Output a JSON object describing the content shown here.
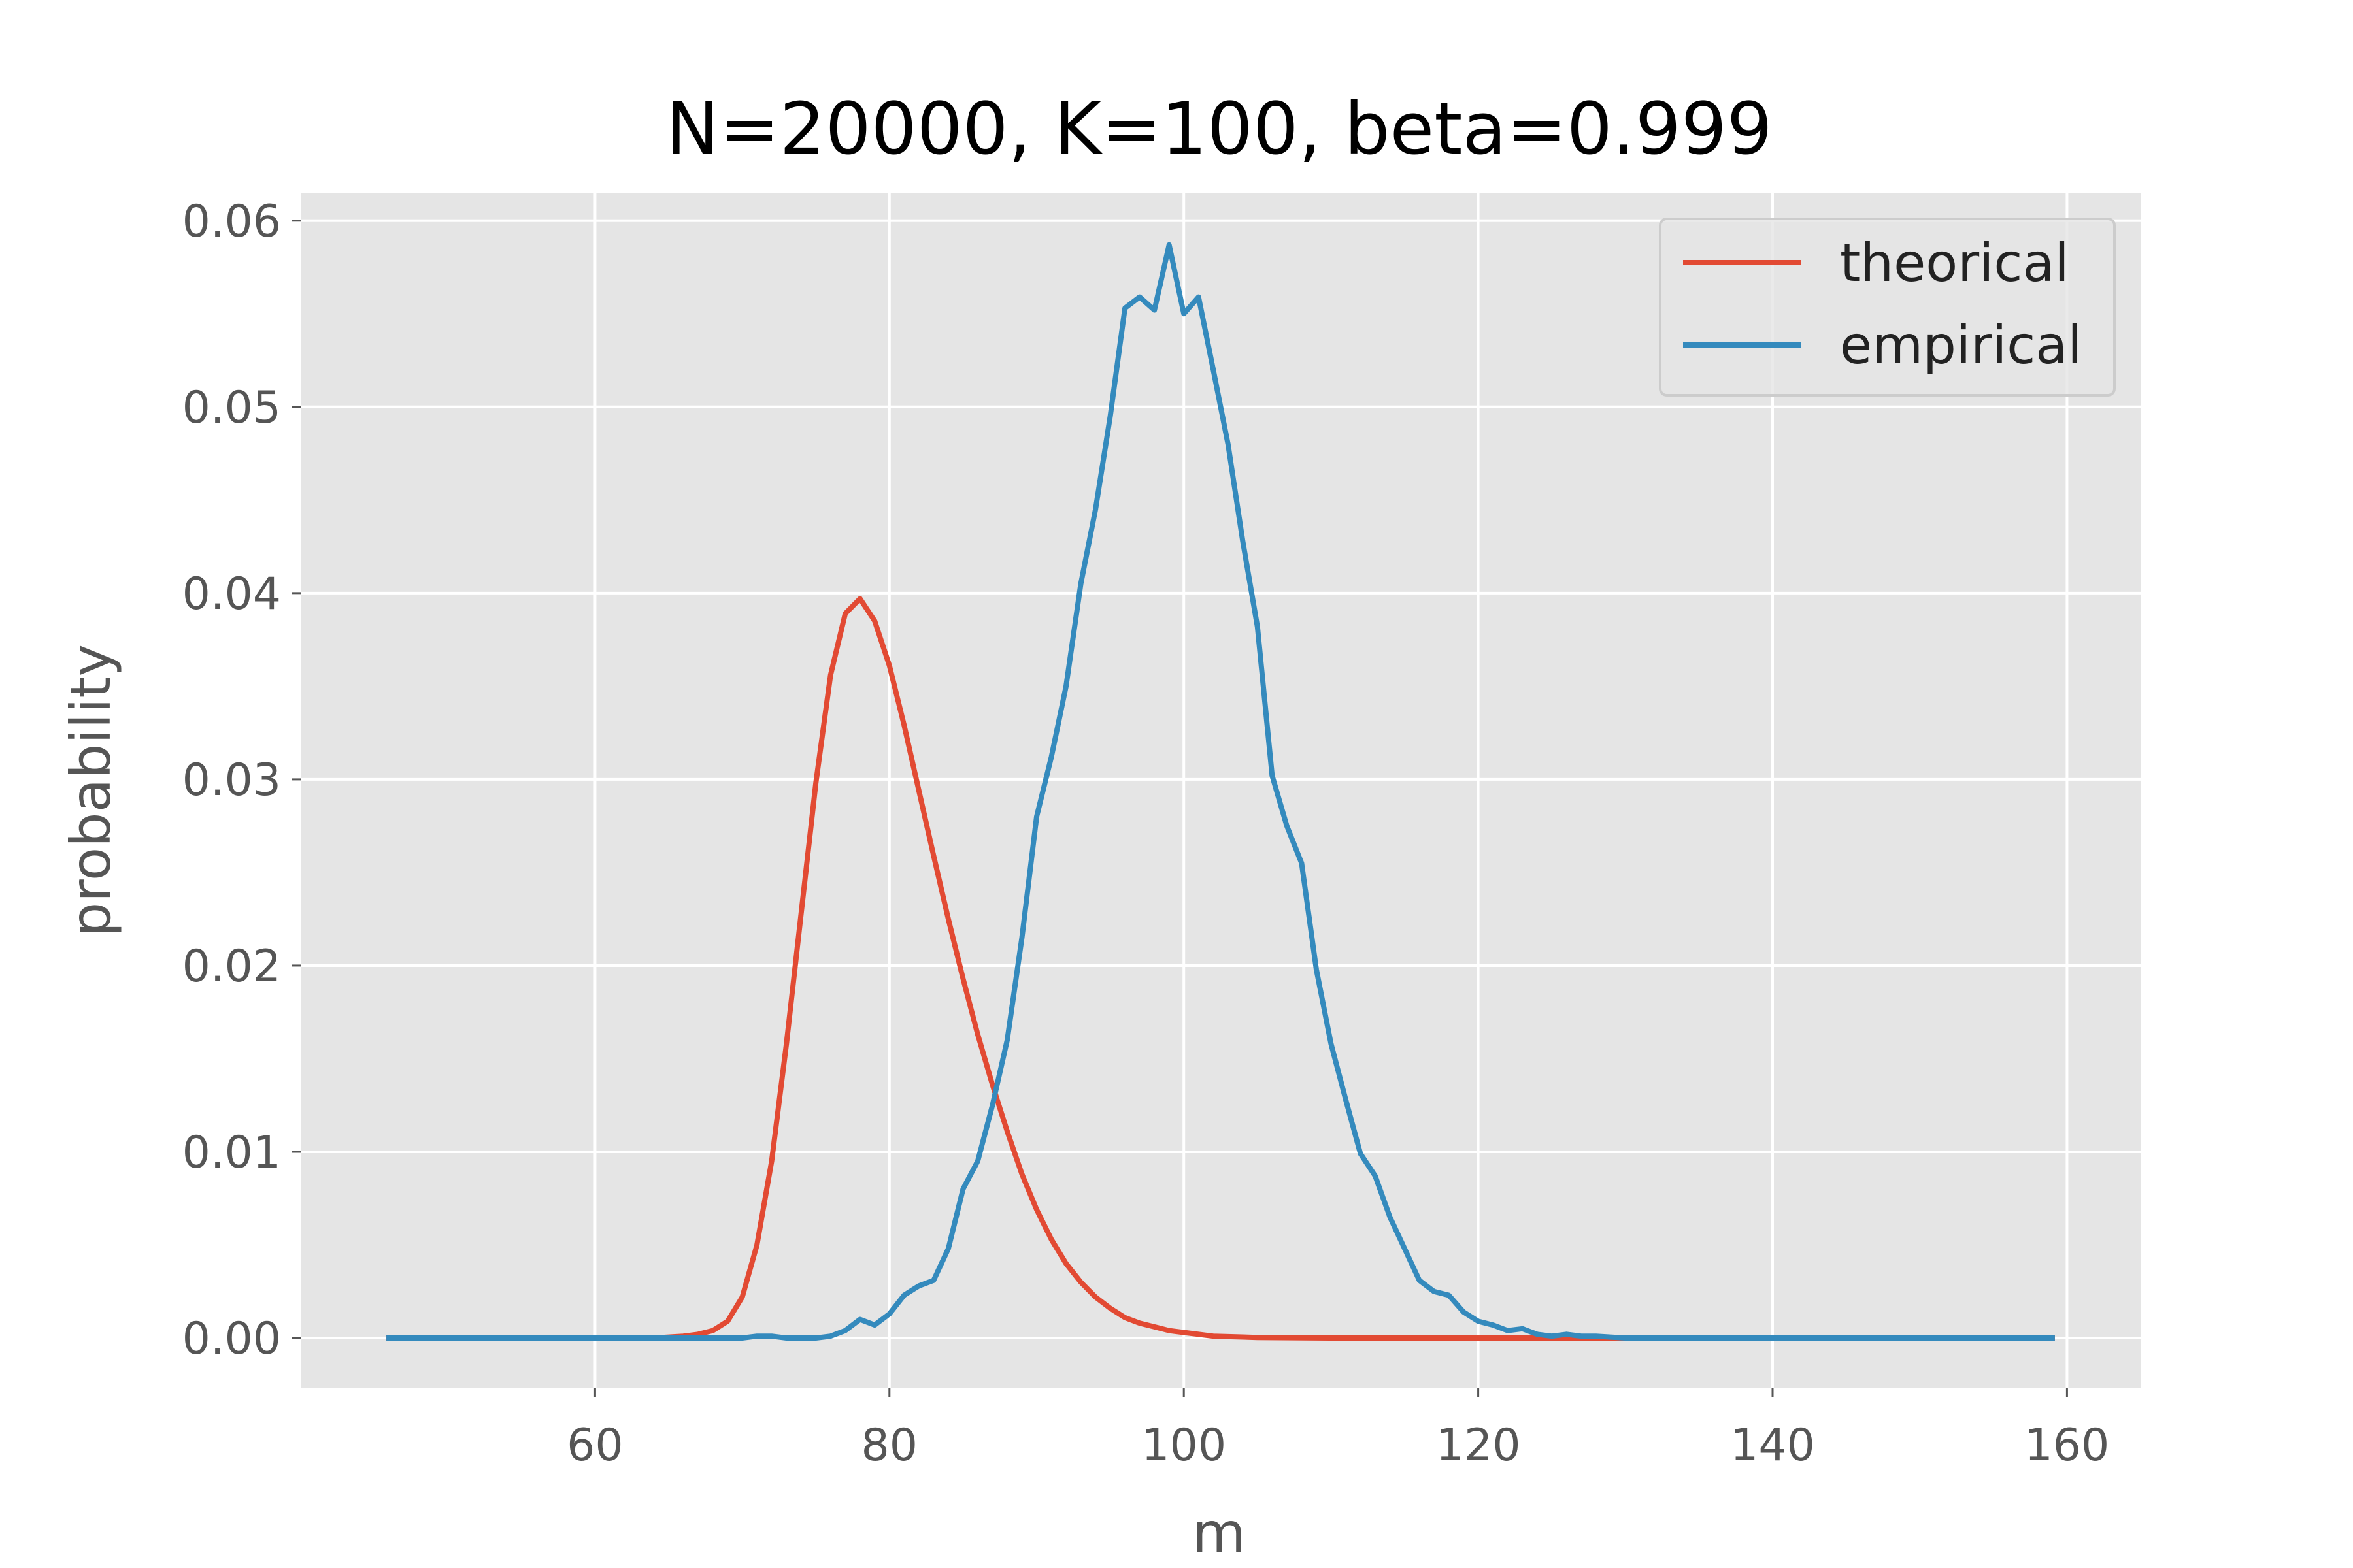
{
  "chart_data": {
    "type": "line",
    "title": "N=20000, K=100, beta=0.999",
    "xlabel": "m",
    "ylabel": "probability",
    "xlim": [
      40,
      165
    ],
    "ylim": [
      -0.0027,
      0.0615
    ],
    "xticks": [
      60,
      80,
      100,
      120,
      140,
      160
    ],
    "yticks": [
      0.0,
      0.01,
      0.02,
      0.03,
      0.04,
      0.05,
      0.06
    ],
    "ytick_labels": [
      "0.00",
      "0.01",
      "0.02",
      "0.03",
      "0.04",
      "0.05",
      "0.06"
    ],
    "grid": true,
    "legend_position": "upper right",
    "series": [
      {
        "name": "theorical",
        "color": "#e24a33",
        "points": [
          [
            46,
            0.0
          ],
          [
            60,
            0.0
          ],
          [
            64,
            0.0
          ],
          [
            66,
            0.0001
          ],
          [
            67,
            0.0002
          ],
          [
            68,
            0.0004
          ],
          [
            69,
            0.0009
          ],
          [
            70,
            0.0022
          ],
          [
            71,
            0.005
          ],
          [
            72,
            0.0095
          ],
          [
            73,
            0.0158
          ],
          [
            74,
            0.0228
          ],
          [
            75,
            0.0298
          ],
          [
            76,
            0.0356
          ],
          [
            77,
            0.0389
          ],
          [
            78,
            0.0397
          ],
          [
            79,
            0.0385
          ],
          [
            80,
            0.0361
          ],
          [
            81,
            0.0329
          ],
          [
            82,
            0.0294
          ],
          [
            83,
            0.0259
          ],
          [
            84,
            0.0225
          ],
          [
            85,
            0.0193
          ],
          [
            86,
            0.0163
          ],
          [
            87,
            0.0136
          ],
          [
            88,
            0.0111
          ],
          [
            89,
            0.0088
          ],
          [
            90,
            0.0069
          ],
          [
            91,
            0.0053
          ],
          [
            92,
            0.004
          ],
          [
            93,
            0.003
          ],
          [
            94,
            0.0022
          ],
          [
            95,
            0.0016
          ],
          [
            96,
            0.0011
          ],
          [
            97,
            0.0008
          ],
          [
            98,
            0.0006
          ],
          [
            99,
            0.0004
          ],
          [
            100,
            0.0003
          ],
          [
            102,
            0.0001
          ],
          [
            105,
            3e-05
          ],
          [
            110,
            0.0
          ],
          [
            130,
            0.0
          ],
          [
            159,
            0.0
          ]
        ]
      },
      {
        "name": "empirical",
        "color": "#348abd",
        "points": [
          [
            46,
            0.0
          ],
          [
            70,
            0.0
          ],
          [
            71,
            0.0001
          ],
          [
            72,
            0.0001
          ],
          [
            73,
            0.0
          ],
          [
            75,
            0.0
          ],
          [
            76,
            0.0001
          ],
          [
            77,
            0.0004
          ],
          [
            78,
            0.001
          ],
          [
            79,
            0.0007
          ],
          [
            80,
            0.0013
          ],
          [
            81,
            0.0023
          ],
          [
            82,
            0.0028
          ],
          [
            83,
            0.0031
          ],
          [
            84,
            0.0048
          ],
          [
            85,
            0.008
          ],
          [
            86,
            0.0095
          ],
          [
            87,
            0.0125
          ],
          [
            88,
            0.016
          ],
          [
            89,
            0.0215
          ],
          [
            90,
            0.028
          ],
          [
            91,
            0.0312
          ],
          [
            92,
            0.035
          ],
          [
            93,
            0.0405
          ],
          [
            94,
            0.0445
          ],
          [
            95,
            0.0495
          ],
          [
            96,
            0.0553
          ],
          [
            97,
            0.0559
          ],
          [
            98,
            0.0552
          ],
          [
            99,
            0.0587
          ],
          [
            100,
            0.055
          ],
          [
            101,
            0.0559
          ],
          [
            102,
            0.052
          ],
          [
            103,
            0.048
          ],
          [
            104,
            0.0428
          ],
          [
            105,
            0.0382
          ],
          [
            106,
            0.0302
          ],
          [
            107,
            0.0275
          ],
          [
            108,
            0.0255
          ],
          [
            109,
            0.0198
          ],
          [
            110,
            0.0158
          ],
          [
            111,
            0.0128
          ],
          [
            112,
            0.0099
          ],
          [
            113,
            0.0087
          ],
          [
            114,
            0.0065
          ],
          [
            115,
            0.0048
          ],
          [
            116,
            0.0031
          ],
          [
            117,
            0.0025
          ],
          [
            118,
            0.0023
          ],
          [
            119,
            0.0014
          ],
          [
            120,
            0.0009
          ],
          [
            121,
            0.0007
          ],
          [
            122,
            0.0004
          ],
          [
            123,
            0.0005
          ],
          [
            124,
            0.0002
          ],
          [
            125,
            0.0001
          ],
          [
            126,
            0.0002
          ],
          [
            127,
            0.0001
          ],
          [
            128,
            0.0001
          ],
          [
            130,
            0.0
          ],
          [
            159,
            0.0
          ]
        ]
      }
    ]
  }
}
